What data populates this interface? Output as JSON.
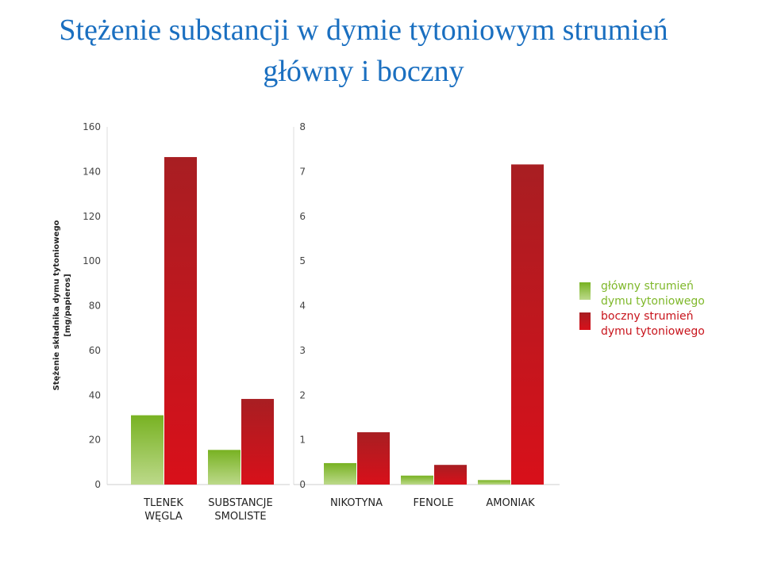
{
  "title_line1": "Stężenie substancji w dymie tytoniowym strumień",
  "title_line2": "główny i boczny",
  "colors": {
    "main": "#7fb82a",
    "side": "#c8141c"
  },
  "chart_data": [
    {
      "type": "bar",
      "ylabel": "Stężenie składnika dymu tytoniowego",
      "ylabel2": "[mg/papieros]",
      "ylim": [
        0,
        160
      ],
      "yticks": [
        0,
        20,
        40,
        60,
        80,
        100,
        120,
        140,
        160
      ],
      "categories": [
        [
          "TLENEK",
          "WĘGLA"
        ],
        [
          "SUBSTANCJE",
          "SMOLISTE"
        ]
      ],
      "series": [
        {
          "name": "główny strumień dymu tytoniowego",
          "values": [
            31,
            15.5
          ]
        },
        {
          "name": "boczny strumień dymu tytoniowego",
          "values": [
            146.5,
            38.3
          ]
        }
      ]
    },
    {
      "type": "bar",
      "ylim": [
        0,
        8
      ],
      "yticks": [
        0,
        1,
        2,
        3,
        4,
        5,
        6,
        7,
        8
      ],
      "categories": [
        [
          "NIKOTYNA"
        ],
        [
          "FENOLE"
        ],
        [
          "AMONIAK"
        ]
      ],
      "series": [
        {
          "name": "główny strumień dymu tytoniowego",
          "values": [
            0.48,
            0.2,
            0.1
          ]
        },
        {
          "name": "boczny strumień dymu tytoniowego",
          "values": [
            1.17,
            0.44,
            7.16
          ]
        }
      ]
    }
  ],
  "legend": [
    {
      "line1": "główny strumień",
      "line2": "dymu tytoniowego"
    },
    {
      "line1": "boczny strumień",
      "line2": "dymu tytoniowego"
    }
  ]
}
